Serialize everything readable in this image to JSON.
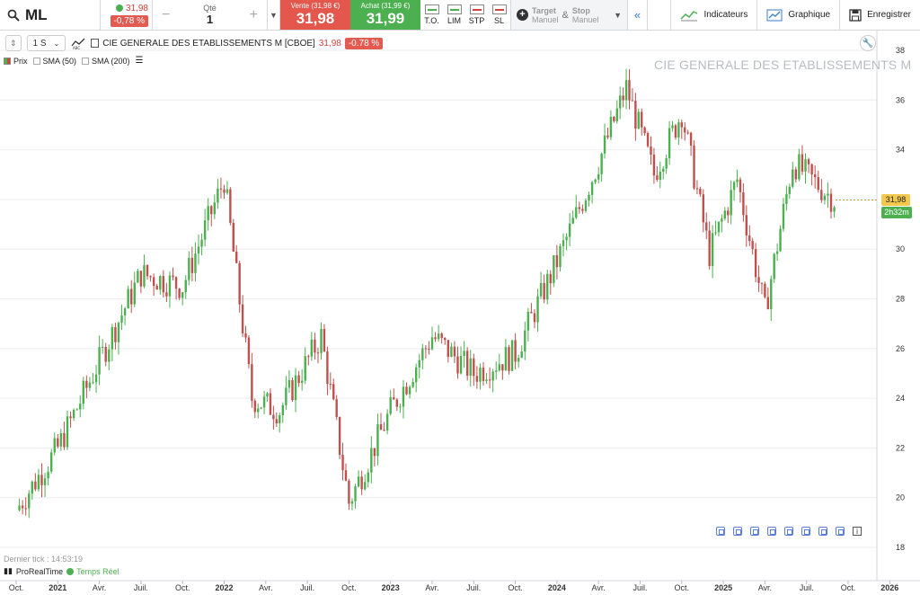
{
  "toolbar": {
    "symbol": "ML",
    "last_price": "31,98",
    "change": "-0,78 %",
    "qty_label": "Qté",
    "qty_value": "1",
    "minus": "−",
    "plus": "+",
    "sell_label": "Vente (31,98 €)",
    "sell_value": "31,98",
    "buy_label": "Achat (31,99 €)",
    "buy_value": "31,99",
    "order_types": [
      "T.O.",
      "LIM",
      "STP",
      "SL"
    ],
    "target_label": "Target",
    "target_sub": "Manuel",
    "amp": "&",
    "stop_label": "Stop",
    "stop_sub": "Manuel",
    "indicators": "Indicateurs",
    "graphique": "Graphique",
    "save": "Enregistrer"
  },
  "header": {
    "timeframe": "1 S",
    "instrument": "CIE GENERALE DES ETABLISSEMENTS M [CBOE]",
    "price": "31,98",
    "change": "-0.78 %"
  },
  "legend": [
    {
      "label": "Prix",
      "checked": true
    },
    {
      "label": "SMA (50)",
      "checked": false
    },
    {
      "label": "SMA (200)",
      "checked": false
    }
  ],
  "watermark": "CIE GENERALE DES ETABLISSEMENTS M",
  "last_price_tag": "31,98",
  "countdown_tag": "2h32m",
  "footer": {
    "last_tick": "Dernier tick : 14:53:19",
    "brand": "ProRealTime",
    "realtime": "Temps Réel"
  },
  "colors": {
    "up": "#4caf50",
    "down": "#c0504d",
    "sell": "#e3574c",
    "buy": "#4caf50"
  },
  "chart_data": {
    "type": "candlestick",
    "y_ticks": [
      "18",
      "20",
      "22",
      "24",
      "26",
      "28",
      "30",
      "32",
      "34",
      "36",
      "38"
    ],
    "ylim": [
      18,
      38
    ],
    "x_ticks": [
      "Oct.",
      "2021",
      "Avr.",
      "Juil.",
      "Oct.",
      "2022",
      "Avr.",
      "Juil.",
      "Oct.",
      "2023",
      "Avr.",
      "Juil.",
      "Oct.",
      "2024",
      "Avr.",
      "Juil.",
      "Oct.",
      "2025",
      "Avr.",
      "Juil.",
      "Oct.",
      "2026"
    ],
    "series": [
      {
        "date": "2020-10",
        "close": 19.5
      },
      {
        "date": "2021-01",
        "close": 22.0
      },
      {
        "date": "2021-04",
        "close": 25.5
      },
      {
        "date": "2021-07",
        "close": 29.0
      },
      {
        "date": "2021-10",
        "close": 28.5
      },
      {
        "date": "2022-01",
        "close": 32.8
      },
      {
        "date": "2022-03",
        "close": 24.0
      },
      {
        "date": "2022-05",
        "close": 23.5
      },
      {
        "date": "2022-08",
        "close": 26.5
      },
      {
        "date": "2022-10",
        "close": 19.8
      },
      {
        "date": "2023-01",
        "close": 23.5
      },
      {
        "date": "2023-04",
        "close": 26.5
      },
      {
        "date": "2023-07",
        "close": 25.0
      },
      {
        "date": "2023-10",
        "close": 25.8
      },
      {
        "date": "2024-01",
        "close": 29.5
      },
      {
        "date": "2024-04",
        "close": 33.5
      },
      {
        "date": "2024-06",
        "close": 36.5
      },
      {
        "date": "2024-08",
        "close": 33.0
      },
      {
        "date": "2024-10",
        "close": 35.5
      },
      {
        "date": "2024-12",
        "close": 29.8
      },
      {
        "date": "2025-02",
        "close": 32.8
      },
      {
        "date": "2025-04",
        "close": 27.5
      },
      {
        "date": "2025-06",
        "close": 33.5
      },
      {
        "date": "2025-09",
        "close": 31.98
      }
    ]
  }
}
